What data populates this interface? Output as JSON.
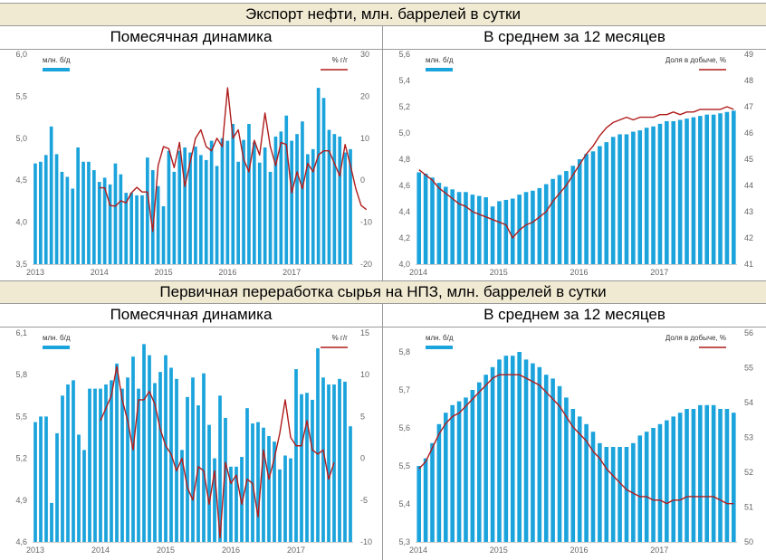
{
  "sections": [
    {
      "title": "Экспорт нефти, млн. баррелей в сутки",
      "left_title": "Помесячная динамика",
      "right_title": "В среднем за 12 месяцев"
    },
    {
      "title": "Первичная переработка сырья на НПЗ, млн. баррелей в сутки",
      "left_title": "Помесячная динамика",
      "right_title": "В среднем за 12 месяцев"
    }
  ],
  "colors": {
    "bar": "#1ba3dc",
    "line": "#b01c1c",
    "band": "#f1ead3",
    "axis_text": "#666666"
  },
  "chart_data": [
    {
      "type": "bar",
      "x_ticks": [
        "2013",
        "2014",
        "2015",
        "2016",
        "2017"
      ],
      "legend_left": "млн. б/д",
      "legend_right": "% г/г",
      "y_left": {
        "ticks": [
          "3,5",
          "4,0",
          "4,5",
          "5,0",
          "5,5",
          "6,0"
        ],
        "range": [
          3.5,
          6.0
        ]
      },
      "y_right": {
        "ticks": [
          "-20",
          "-10",
          "0",
          "10",
          "20",
          "30"
        ],
        "range": [
          -20,
          30
        ]
      },
      "series": [
        {
          "name": "млн. б/д",
          "kind": "bar",
          "axis": "left",
          "values": [
            4.7,
            4.72,
            4.8,
            5.14,
            4.81,
            4.6,
            4.54,
            4.4,
            4.89,
            4.72,
            4.72,
            4.62,
            4.48,
            4.53,
            4.45,
            4.7,
            4.57,
            4.35,
            4.35,
            4.32,
            4.32,
            4.77,
            4.62,
            4.43,
            4.19,
            4.85,
            4.6,
            4.85,
            4.89,
            4.83,
            4.9,
            4.8,
            4.74,
            4.97,
            4.67,
            5.0,
            4.97,
            5.17,
            4.72,
            4.98,
            5.17,
            4.95,
            4.71,
            4.89,
            4.6,
            5.02,
            5.08,
            5.27,
            4.97,
            5.05,
            5.2,
            4.81,
            4.87,
            5.6,
            5.48,
            5.1,
            5.05,
            5.02,
            4.83,
            4.87
          ],
          "start": "2013-01"
        },
        {
          "name": "% г/г",
          "kind": "line",
          "axis": "right",
          "values": [
            -1.8,
            -1.8,
            -6.0,
            -6.2,
            -4.9,
            -5.4,
            -3.0,
            -1.7,
            -2.8,
            -2.8,
            -12.2,
            3.5,
            8.0,
            7.5,
            3.0,
            9.0,
            -1.5,
            4.3,
            10.0,
            12.0,
            8.0,
            7.0,
            10.0,
            8.0,
            22.0,
            10.0,
            12.0,
            5.0,
            2.0,
            9.5,
            6.0,
            16.0,
            8.0,
            3.5,
            9.0,
            8.5,
            -3.0,
            2.0,
            -2.0,
            4.0,
            2.0,
            6.0,
            7.0,
            7.0,
            4.0,
            1.0,
            8.5,
            3.5,
            -2.0,
            -6.0,
            -7.0
          ],
          "start": "2014-01"
        }
      ]
    },
    {
      "type": "bar",
      "x_ticks": [
        "2014",
        "2015",
        "2016",
        "2017"
      ],
      "legend_left": "млн. б/д",
      "legend_right": "Доля в добыче, %",
      "y_left": {
        "ticks": [
          "4,0",
          "4,2",
          "4,4",
          "4,6",
          "4,8",
          "5,0",
          "5,2",
          "5,4",
          "5,6"
        ],
        "range": [
          4.0,
          5.6
        ]
      },
      "y_right": {
        "ticks": [
          "41",
          "42",
          "43",
          "44",
          "45",
          "46",
          "47",
          "48",
          "49"
        ],
        "range": [
          41,
          49
        ]
      },
      "series": [
        {
          "name": "млн. б/д",
          "kind": "bar",
          "axis": "left",
          "values": [
            4.7,
            4.69,
            4.66,
            4.62,
            4.59,
            4.57,
            4.55,
            4.55,
            4.53,
            4.52,
            4.51,
            4.44,
            4.48,
            4.49,
            4.5,
            4.53,
            4.55,
            4.56,
            4.58,
            4.61,
            4.65,
            4.68,
            4.71,
            4.75,
            4.8,
            4.84,
            4.86,
            4.9,
            4.93,
            4.97,
            4.99,
            4.99,
            5.01,
            5.02,
            5.04,
            5.05,
            5.07,
            5.09,
            5.09,
            5.1,
            5.11,
            5.12,
            5.13,
            5.14,
            5.14,
            5.15,
            5.16,
            5.17
          ],
          "start": "2014-01"
        },
        {
          "name": "Доля в добыче, %",
          "kind": "line",
          "axis": "right",
          "values": [
            44.6,
            44.4,
            44.2,
            43.9,
            43.7,
            43.5,
            43.3,
            43.2,
            43.0,
            42.9,
            42.8,
            42.7,
            42.6,
            42.5,
            42.0,
            42.3,
            42.5,
            42.6,
            42.8,
            43.0,
            43.4,
            43.7,
            44.0,
            44.4,
            44.8,
            45.2,
            45.5,
            45.9,
            46.2,
            46.4,
            46.5,
            46.6,
            46.5,
            46.6,
            46.6,
            46.6,
            46.7,
            46.7,
            46.8,
            46.7,
            46.8,
            46.8,
            46.9,
            46.9,
            46.9,
            46.9,
            47.0,
            46.9
          ]
        }
      ]
    },
    {
      "type": "bar",
      "x_ticks": [
        "2013",
        "2014",
        "2015",
        "2016",
        "2017"
      ],
      "legend_left": "млн. б/д",
      "legend_right": "% г/г",
      "y_left": {
        "ticks": [
          "4,6",
          "4,9",
          "5,2",
          "5,5",
          "5,8",
          "6,1"
        ],
        "range": [
          4.6,
          6.1
        ]
      },
      "y_right": {
        "ticks": [
          "-10",
          "-5",
          "0",
          "5",
          "10",
          "15"
        ],
        "range": [
          -10,
          15
        ]
      },
      "series": [
        {
          "name": "млн. б/д",
          "kind": "bar",
          "axis": "left",
          "values": [
            5.46,
            5.5,
            5.5,
            4.88,
            5.38,
            5.65,
            5.73,
            5.76,
            5.37,
            5.26,
            5.7,
            5.7,
            5.7,
            5.73,
            5.76,
            5.88,
            5.7,
            5.78,
            5.93,
            5.7,
            6.02,
            5.94,
            5.74,
            5.82,
            5.94,
            5.85,
            5.77,
            5.26,
            5.64,
            5.78,
            5.58,
            5.81,
            5.44,
            5.2,
            5.65,
            5.49,
            5.14,
            5.14,
            5.21,
            5.56,
            5.45,
            5.46,
            5.42,
            5.36,
            5.32,
            5.12,
            5.22,
            5.2,
            5.84,
            5.66,
            5.67,
            5.62,
            5.99,
            5.78,
            5.73,
            5.73,
            5.77,
            5.75,
            5.43
          ],
          "start": "2013-01"
        },
        {
          "name": "% г/г",
          "kind": "line",
          "axis": "right",
          "values": [
            4.5,
            6.0,
            7.5,
            11.0,
            7.0,
            4.5,
            1.0,
            7.0,
            7.0,
            8.0,
            6.5,
            3.5,
            1.5,
            0.5,
            -1.5,
            0.0,
            -3.5,
            -5.0,
            -1.0,
            -1.5,
            -5.5,
            -1.5,
            -9.5,
            -0.5,
            -3.0,
            -2.0,
            -5.5,
            -2.5,
            -3.0,
            -7.0,
            1.0,
            -2.5,
            0.0,
            3.0,
            7.0,
            2.5,
            1.5,
            1.5,
            4.5,
            1.0,
            0.5,
            1.0,
            -2.5,
            -0.5
          ],
          "start": "2014-01"
        }
      ]
    },
    {
      "type": "bar",
      "x_ticks": [
        "2014",
        "2015",
        "2016",
        "2017"
      ],
      "legend_left": "млн. б/д",
      "legend_right": "Доля в добыче, %",
      "y_left": {
        "ticks": [
          "5,3",
          "5,4",
          "5,5",
          "5,6",
          "5,7",
          "5,8"
        ],
        "range": [
          5.3,
          5.85
        ]
      },
      "y_right": {
        "ticks": [
          "50",
          "51",
          "52",
          "53",
          "54",
          "55",
          "56"
        ],
        "range": [
          50,
          56
        ]
      },
      "series": [
        {
          "name": "млн. б/д",
          "kind": "bar",
          "axis": "left",
          "values": [
            5.5,
            5.52,
            5.56,
            5.61,
            5.64,
            5.66,
            5.67,
            5.68,
            5.7,
            5.72,
            5.74,
            5.76,
            5.78,
            5.79,
            5.79,
            5.8,
            5.78,
            5.77,
            5.76,
            5.74,
            5.73,
            5.71,
            5.68,
            5.65,
            5.63,
            5.61,
            5.59,
            5.56,
            5.55,
            5.55,
            5.55,
            5.55,
            5.56,
            5.58,
            5.59,
            5.6,
            5.61,
            5.62,
            5.63,
            5.64,
            5.65,
            5.65,
            5.66,
            5.66,
            5.66,
            5.65,
            5.65,
            5.64
          ],
          "start": "2014-01"
        },
        {
          "name": "Доля в добыче, %",
          "kind": "line",
          "axis": "right",
          "values": [
            52.1,
            52.3,
            52.7,
            53.1,
            53.4,
            53.6,
            53.7,
            53.9,
            54.1,
            54.3,
            54.5,
            54.7,
            54.8,
            54.8,
            54.8,
            54.8,
            54.7,
            54.6,
            54.5,
            54.3,
            54.1,
            53.9,
            53.6,
            53.3,
            53.1,
            52.9,
            52.6,
            52.4,
            52.1,
            51.9,
            51.7,
            51.5,
            51.4,
            51.3,
            51.3,
            51.2,
            51.2,
            51.1,
            51.2,
            51.2,
            51.3,
            51.3,
            51.3,
            51.3,
            51.3,
            51.2,
            51.1,
            51.1
          ]
        }
      ]
    }
  ]
}
